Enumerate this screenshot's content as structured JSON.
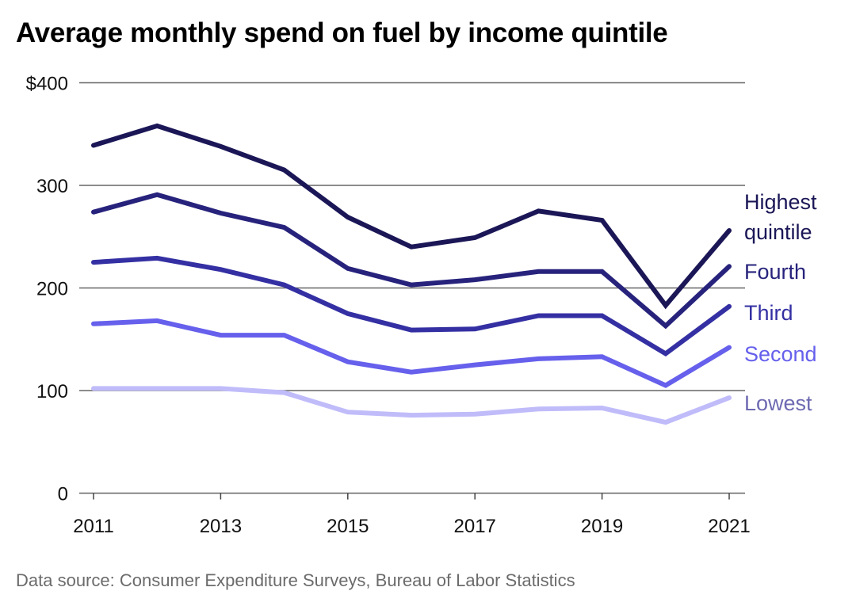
{
  "title": "Average monthly spend on fuel by income quintile",
  "source": "Data source: Consumer Expenditure Surveys, Bureau of Labor Statistics",
  "chart_data": {
    "type": "line",
    "title": "Average monthly spend on fuel by income quintile",
    "xlabel": "",
    "ylabel": "",
    "x": [
      2011,
      2012,
      2013,
      2014,
      2015,
      2016,
      2017,
      2018,
      2019,
      2020,
      2021
    ],
    "xticks": [
      "2011",
      "2013",
      "2015",
      "2017",
      "2019",
      "2021"
    ],
    "xtick_values": [
      2011,
      2013,
      2015,
      2017,
      2019,
      2021
    ],
    "yticks": [
      "0",
      "100",
      "200",
      "300",
      "$400"
    ],
    "ytick_values": [
      0,
      100,
      200,
      300,
      400
    ],
    "ylim": [
      0,
      400
    ],
    "xlim": [
      2011,
      2021
    ],
    "grid": "horizontal",
    "legend": "direct labels at right end of lines",
    "series": [
      {
        "name": "Highest quintile",
        "label_lines": [
          "Highest",
          "quintile"
        ],
        "color": "#1b1757",
        "label_color": "#1b1757",
        "values": [
          339,
          358,
          338,
          315,
          269,
          240,
          249,
          275,
          266,
          183,
          256
        ]
      },
      {
        "name": "Fourth",
        "label_lines": [
          "Fourth"
        ],
        "color": "#27237c",
        "label_color": "#27237c",
        "values": [
          274,
          291,
          273,
          259,
          219,
          203,
          208,
          216,
          216,
          163,
          221
        ]
      },
      {
        "name": "Third",
        "label_lines": [
          "Third"
        ],
        "color": "#3430a3",
        "label_color": "#3430a3",
        "values": [
          225,
          229,
          218,
          203,
          175,
          159,
          160,
          173,
          173,
          136,
          182
        ]
      },
      {
        "name": "Second",
        "label_lines": [
          "Second"
        ],
        "color": "#6660ec",
        "label_color": "#6660ec",
        "values": [
          165,
          168,
          154,
          154,
          128,
          118,
          125,
          131,
          133,
          105,
          142
        ]
      },
      {
        "name": "Lowest",
        "label_lines": [
          "Lowest"
        ],
        "color": "#c0bcfa",
        "label_color": "#6e6ab2",
        "values": [
          102,
          102,
          102,
          98,
          79,
          76,
          77,
          82,
          83,
          69,
          93
        ]
      }
    ]
  }
}
